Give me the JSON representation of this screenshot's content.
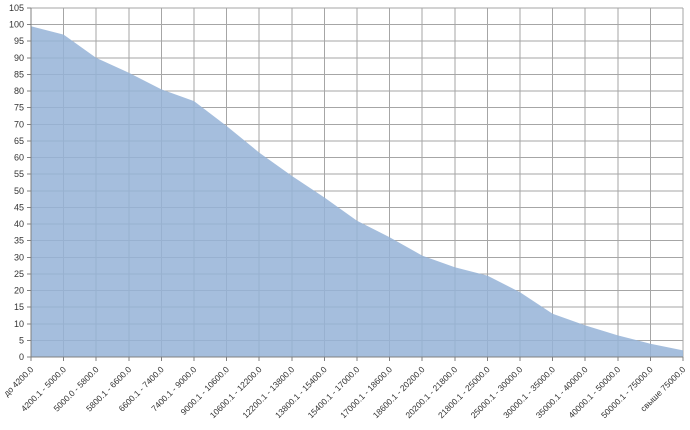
{
  "chart_data": {
    "type": "area",
    "title": "",
    "xlabel": "",
    "ylabel": "",
    "categories": [
      "до 4200.0",
      "4200.1 - 5000.0",
      "5000.0 - 5800.0",
      "5800.1 - 6600.0",
      "6600.1 - 7400.0",
      "7400.1 - 9000.0",
      "9000.1 - 10600.0",
      "10600.1 - 12200.0",
      "12200.1 - 13800.0",
      "13800.1 - 15400.0",
      "15400.1 - 17000.0",
      "17000.1 - 18600.0",
      "18600.1 - 20200.0",
      "20200.1 - 21800.0",
      "21800.1 - 25000.0",
      "25000.1 - 30000.0",
      "30000.1 - 35000.0",
      "35000.1 - 40000.0",
      "40000.1 - 50000.0",
      "50000.1 - 75000.0",
      "свыше 75000.0"
    ],
    "values": [
      99.5,
      97,
      90,
      85.5,
      80.5,
      77,
      69.5,
      61.5,
      54.5,
      48,
      41,
      36,
      30.5,
      27,
      24.5,
      19.5,
      13,
      9.5,
      6.5,
      4,
      2
    ],
    "ylim": [
      0,
      105
    ],
    "ytick_step": 5,
    "y_ticks": [
      0,
      5,
      10,
      15,
      20,
      25,
      30,
      35,
      40,
      45,
      50,
      55,
      60,
      65,
      70,
      75,
      80,
      85,
      90,
      95,
      100,
      105
    ],
    "grid": true,
    "legend": false,
    "x_labels_rotation_deg": 45,
    "colors": {
      "fill": "#95B3D7",
      "fill_opacity": 0.85,
      "gridline": "#A6A6A6",
      "axis": "#808080",
      "tick_label": "#333333"
    }
  }
}
